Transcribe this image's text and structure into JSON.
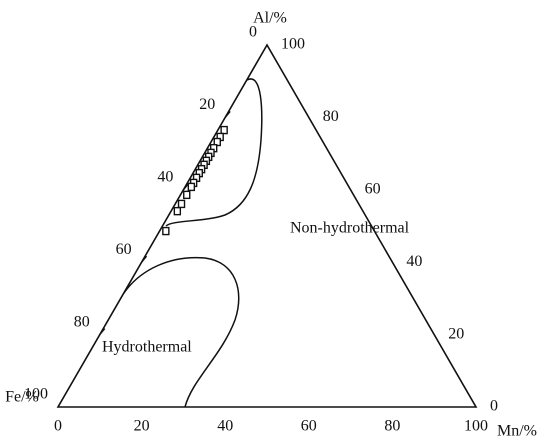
{
  "chart_data": {
    "type": "ternary",
    "axes": {
      "top": {
        "title": "Al/%",
        "ticks": [
          0,
          20,
          40,
          60,
          80,
          100
        ]
      },
      "left": {
        "title": "Fe/%",
        "ticks": [
          0,
          20,
          40,
          60,
          80,
          100
        ]
      },
      "bottom": {
        "title": "Mn/%",
        "ticks": [
          0,
          20,
          40,
          60,
          80,
          100
        ]
      }
    },
    "annotations": [
      "Non-hydrothermal",
      "Hydrothermal"
    ],
    "color": "#111111",
    "points": {
      "al": [
        76.5,
        74.6,
        73.2,
        71.5,
        70.2,
        69.1,
        68.0,
        66.9,
        65.7,
        64.6,
        63.3,
        61.9,
        60.8,
        58.6,
        56.1,
        54.1,
        48.6
      ],
      "mn": [
        1.5,
        1.5,
        1.5,
        1.5,
        1.5,
        1.5,
        1.5,
        1.5,
        1.5,
        1.5,
        1.5,
        1.5,
        1.5,
        1.5,
        1.5,
        1.5,
        1.5
      ],
      "fe": [
        22.0,
        23.9,
        25.3,
        27.0,
        28.3,
        29.4,
        30.5,
        31.6,
        32.8,
        33.9,
        35.2,
        36.6,
        37.7,
        39.9,
        42.4,
        44.4,
        49.9
      ]
    }
  }
}
